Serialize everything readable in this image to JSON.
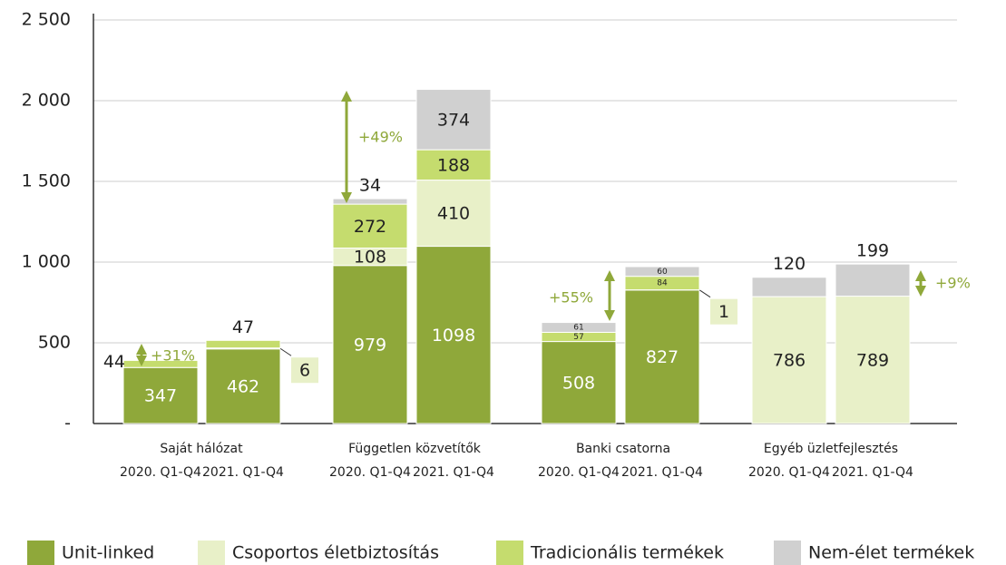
{
  "chart_data": {
    "type": "stacked_bar",
    "groups": [
      "Saját hálózat",
      "Független közvetítők",
      "Banki csatorna",
      "Egyéb üzletfejlesztés"
    ],
    "categories": [
      "2020. Q1-Q4",
      "2021. Q1-Q4",
      "2020. Q1-Q4",
      "2021. Q1-Q4",
      "2020. Q1-Q4",
      "2021. Q1-Q4",
      "2020. Q1-Q4",
      "2021. Q1-Q4"
    ],
    "series": [
      {
        "name": "Unit-linked",
        "color": "#8fa83a",
        "values": [
          347,
          462,
          979,
          1098,
          508,
          827,
          null,
          null
        ]
      },
      {
        "name": "Csoportos életbiztosítás",
        "color": "#e8f0c8",
        "values": [
          null,
          6,
          108,
          410,
          null,
          1,
          786,
          789
        ]
      },
      {
        "name": "Tradicionális termékek",
        "color": "#c5dc6e",
        "values": [
          44,
          47,
          272,
          188,
          57,
          84,
          null,
          null
        ]
      },
      {
        "name": "Nem-élet termékek",
        "color": "#d0d0d0",
        "values": [
          null,
          null,
          34,
          374,
          61,
          60,
          120,
          199
        ]
      }
    ],
    "annotations": [
      "+31%",
      "+49%",
      "+55%",
      "+9%"
    ],
    "ylim": [
      0,
      2500
    ],
    "yticks": [
      {
        "value": 0,
        "label": "-"
      },
      500,
      {
        "value": 1000,
        "label": "1 000"
      },
      {
        "value": 1500,
        "label": "1 500"
      },
      {
        "value": 2000,
        "label": "2 000"
      },
      {
        "value": 2500,
        "label": "2 500"
      }
    ],
    "grid": true
  }
}
